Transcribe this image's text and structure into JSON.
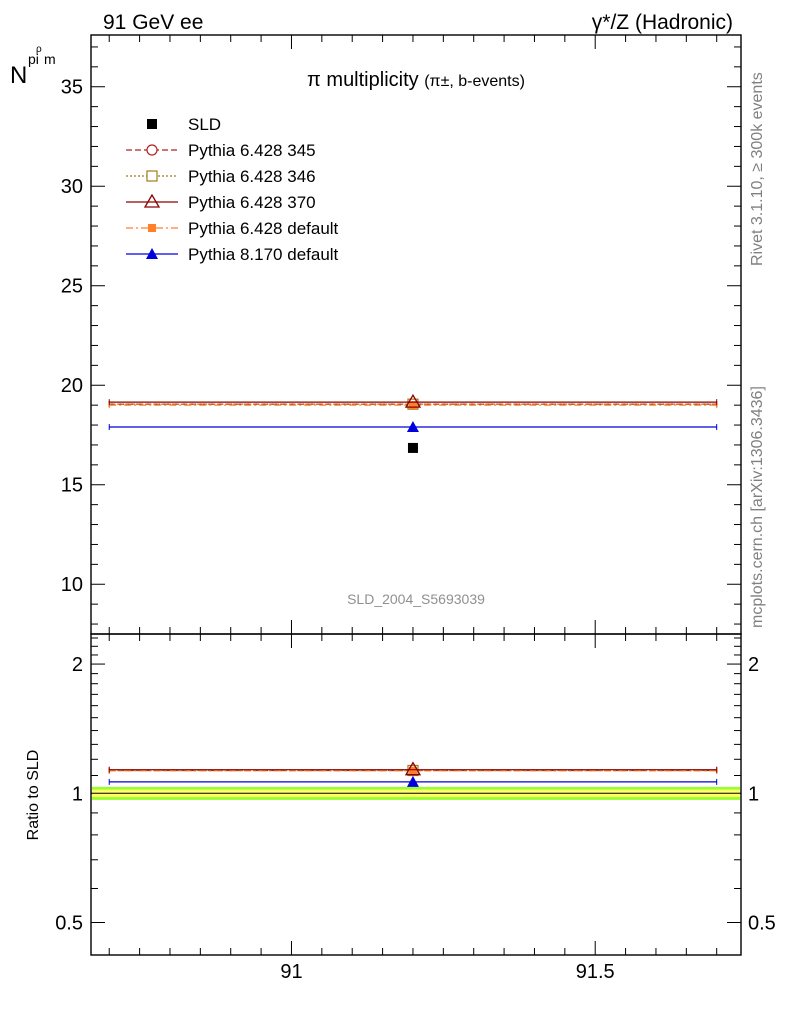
{
  "header": {
    "left": "91 GeV ee",
    "right": "γ*/Z (Hadronic)"
  },
  "side_notes": {
    "rivet": "Rivet 3.1.10, ≥ 300k events",
    "mcplots": "mcplots.cern.ch [arXiv:1306.3436]"
  },
  "analysis_id": "SLD_2004_S5693039",
  "colors": {
    "sld": "#000000",
    "p345": "#b22222",
    "p346": "#a07c1c",
    "p370": "#8b0000",
    "p6def": "#ff7f2a",
    "p8def": "#0000dd",
    "band_inner": "#ffff66",
    "band_outer": "#99ff33"
  },
  "chart_data": [
    {
      "type": "scatter",
      "title": "π multiplicity",
      "title_sub": "(π±, b-events)",
      "ylabel_main": "N",
      "ylabel_sub": "pi",
      "ylabel_sup": "ρ",
      "ylabel_tail": "m",
      "xlim": [
        90.67,
        91.74
      ],
      "ylim": [
        7.5,
        37.6
      ],
      "yticks": [
        10,
        15,
        20,
        25,
        30,
        35
      ],
      "ytick_labels": [
        "10",
        "15",
        "20",
        "25",
        "30",
        "35"
      ],
      "legend_position": "top-left",
      "series": [
        {
          "name": "SLD",
          "key": "sld",
          "marker": "square-filled",
          "line": "none",
          "x": 91.2,
          "y": 16.85
        },
        {
          "name": "Pythia 6.428 345",
          "key": "p345",
          "marker": "circle-open",
          "line": "dashed",
          "x": 91.2,
          "y": 19.05,
          "xerr": [
            90.7,
            91.7
          ]
        },
        {
          "name": "Pythia 6.428 346",
          "key": "p346",
          "marker": "square-open",
          "line": "dotted",
          "x": 91.2,
          "y": 19.05,
          "xerr": [
            90.7,
            91.7
          ]
        },
        {
          "name": "Pythia 6.428 370",
          "key": "p370",
          "marker": "triangle-open",
          "line": "solid",
          "x": 91.2,
          "y": 19.15,
          "xerr": [
            90.7,
            91.7
          ]
        },
        {
          "name": "Pythia 6.428 default",
          "key": "p6def",
          "marker": "square-filled-small",
          "line": "dashdot",
          "x": 91.2,
          "y": 19.0,
          "xerr": [
            90.7,
            91.7
          ]
        },
        {
          "name": "Pythia 8.170 default",
          "key": "p8def",
          "marker": "triangle-filled",
          "line": "solid",
          "x": 91.2,
          "y": 17.9,
          "xerr": [
            90.7,
            91.7
          ]
        }
      ]
    },
    {
      "type": "scatter",
      "ylabel": "Ratio to SLD",
      "xlim": [
        90.67,
        91.74
      ],
      "ylim": [
        0.42,
        2.35
      ],
      "log_y": true,
      "yticks": [
        0.5,
        1,
        2
      ],
      "ytick_labels": [
        "0.5",
        "1",
        "2"
      ],
      "xticks": [
        91,
        91.5
      ],
      "xtick_labels": [
        "91",
        "91.5"
      ],
      "band": {
        "center": 1.0,
        "inner": 0.02,
        "outer": 0.035
      },
      "series": [
        {
          "name": "Pythia 6.428 345",
          "key": "p345",
          "y": 1.13
        },
        {
          "name": "Pythia 6.428 346",
          "key": "p346",
          "y": 1.13
        },
        {
          "name": "Pythia 6.428 370",
          "key": "p370",
          "y": 1.135
        },
        {
          "name": "Pythia 6.428 default",
          "key": "p6def",
          "y": 1.128
        },
        {
          "name": "Pythia 8.170 default",
          "key": "p8def",
          "y": 1.063
        }
      ]
    }
  ]
}
